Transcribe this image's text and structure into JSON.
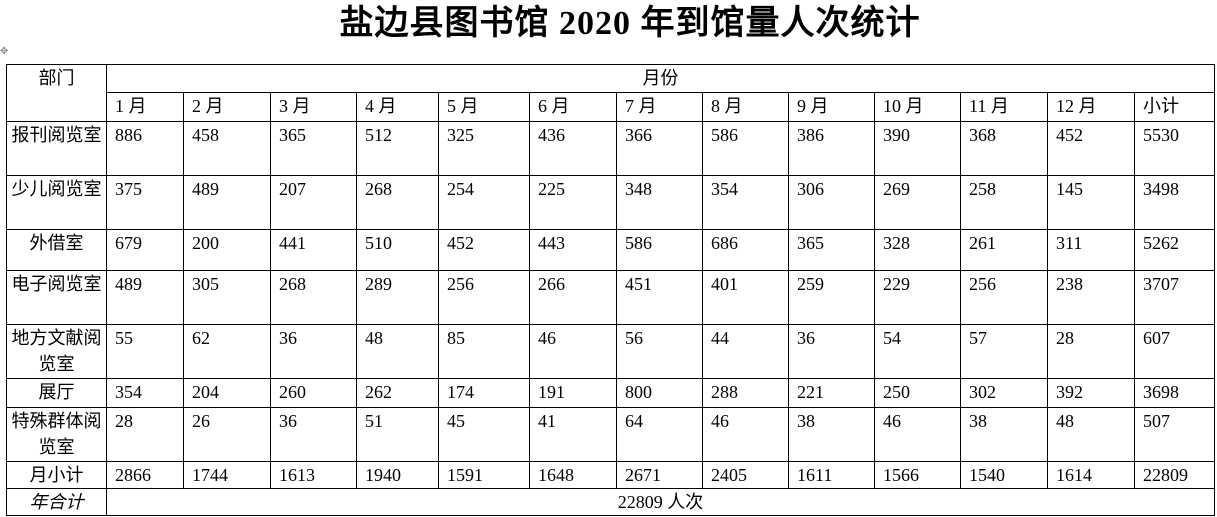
{
  "title": "盐边县图书馆 2020 年到馆量人次统计",
  "table": {
    "dept_header": "部门",
    "month_group_header": "月份",
    "columns": [
      "1 月",
      "2 月",
      "3 月",
      "4 月",
      "5 月",
      "6 月",
      "7 月",
      "8 月",
      "9 月",
      "10 月",
      "11 月",
      "12 月",
      "小计"
    ],
    "rows": [
      {
        "dept": "报刊阅览室",
        "values": [
          "886",
          "458",
          "365",
          "512",
          "325",
          "436",
          "366",
          "586",
          "386",
          "390",
          "368",
          "452",
          "5530"
        ]
      },
      {
        "dept": "少儿阅览室",
        "values": [
          "375",
          "489",
          "207",
          "268",
          "254",
          "225",
          "348",
          "354",
          "306",
          "269",
          "258",
          "145",
          "3498"
        ]
      },
      {
        "dept": "外借室",
        "values": [
          "679",
          "200",
          "441",
          "510",
          "452",
          "443",
          "586",
          "686",
          "365",
          "328",
          "261",
          "311",
          "5262"
        ]
      },
      {
        "dept": "电子阅览室",
        "values": [
          "489",
          "305",
          "268",
          "289",
          "256",
          "266",
          "451",
          "401",
          "259",
          "229",
          "256",
          "238",
          "3707"
        ]
      },
      {
        "dept": "地方文献阅览室",
        "values": [
          "55",
          "62",
          "36",
          "48",
          "85",
          "46",
          "56",
          "44",
          "36",
          "54",
          "57",
          "28",
          "607"
        ]
      },
      {
        "dept": "展厅",
        "values": [
          "354",
          "204",
          "260",
          "262",
          "174",
          "191",
          "800",
          "288",
          "221",
          "250",
          "302",
          "392",
          "3698"
        ]
      },
      {
        "dept": "特殊群体阅览室",
        "values": [
          "28",
          "26",
          "36",
          "51",
          "45",
          "41",
          "64",
          "46",
          "38",
          "46",
          "38",
          "48",
          "507"
        ]
      },
      {
        "dept": "月小计",
        "values": [
          "2866",
          "1744",
          "1613",
          "1940",
          "1591",
          "1648",
          "2671",
          "2405",
          "1611",
          "1566",
          "1540",
          "1614",
          "22809"
        ]
      }
    ],
    "year_total_label": "年合计",
    "year_total_value": "22809 人次"
  }
}
